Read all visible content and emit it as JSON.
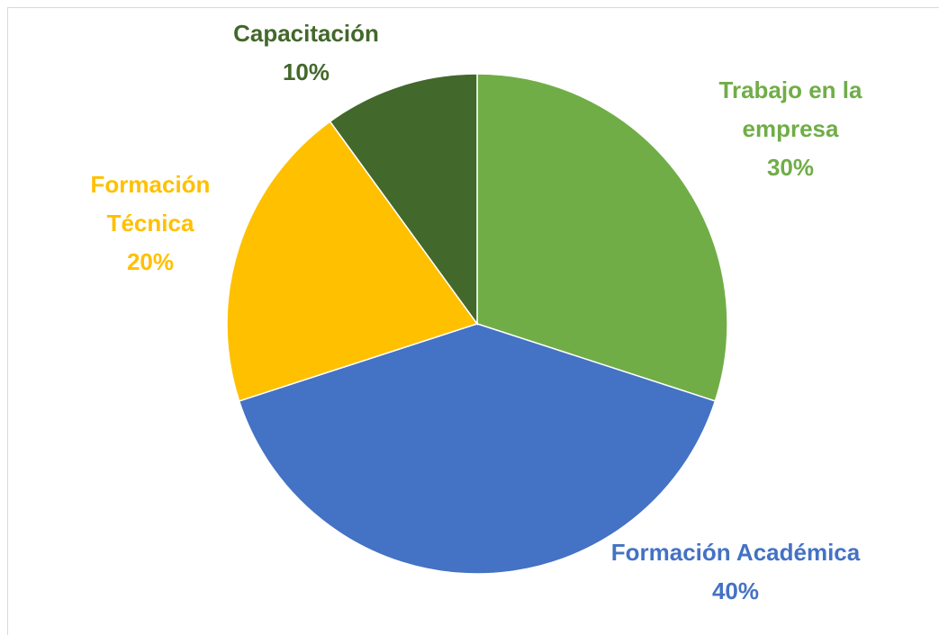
{
  "chart_data": {
    "type": "pie",
    "categories": [
      "Trabajo en la empresa",
      "Formación Académica",
      "Formación Técnica",
      "Capacitación"
    ],
    "values": [
      30,
      40,
      20,
      10
    ],
    "value_labels": [
      "30%",
      "40%",
      "20%",
      "10%"
    ],
    "colors": [
      "#70ad47",
      "#4472c4",
      "#ffc000",
      "#43682b"
    ]
  }
}
